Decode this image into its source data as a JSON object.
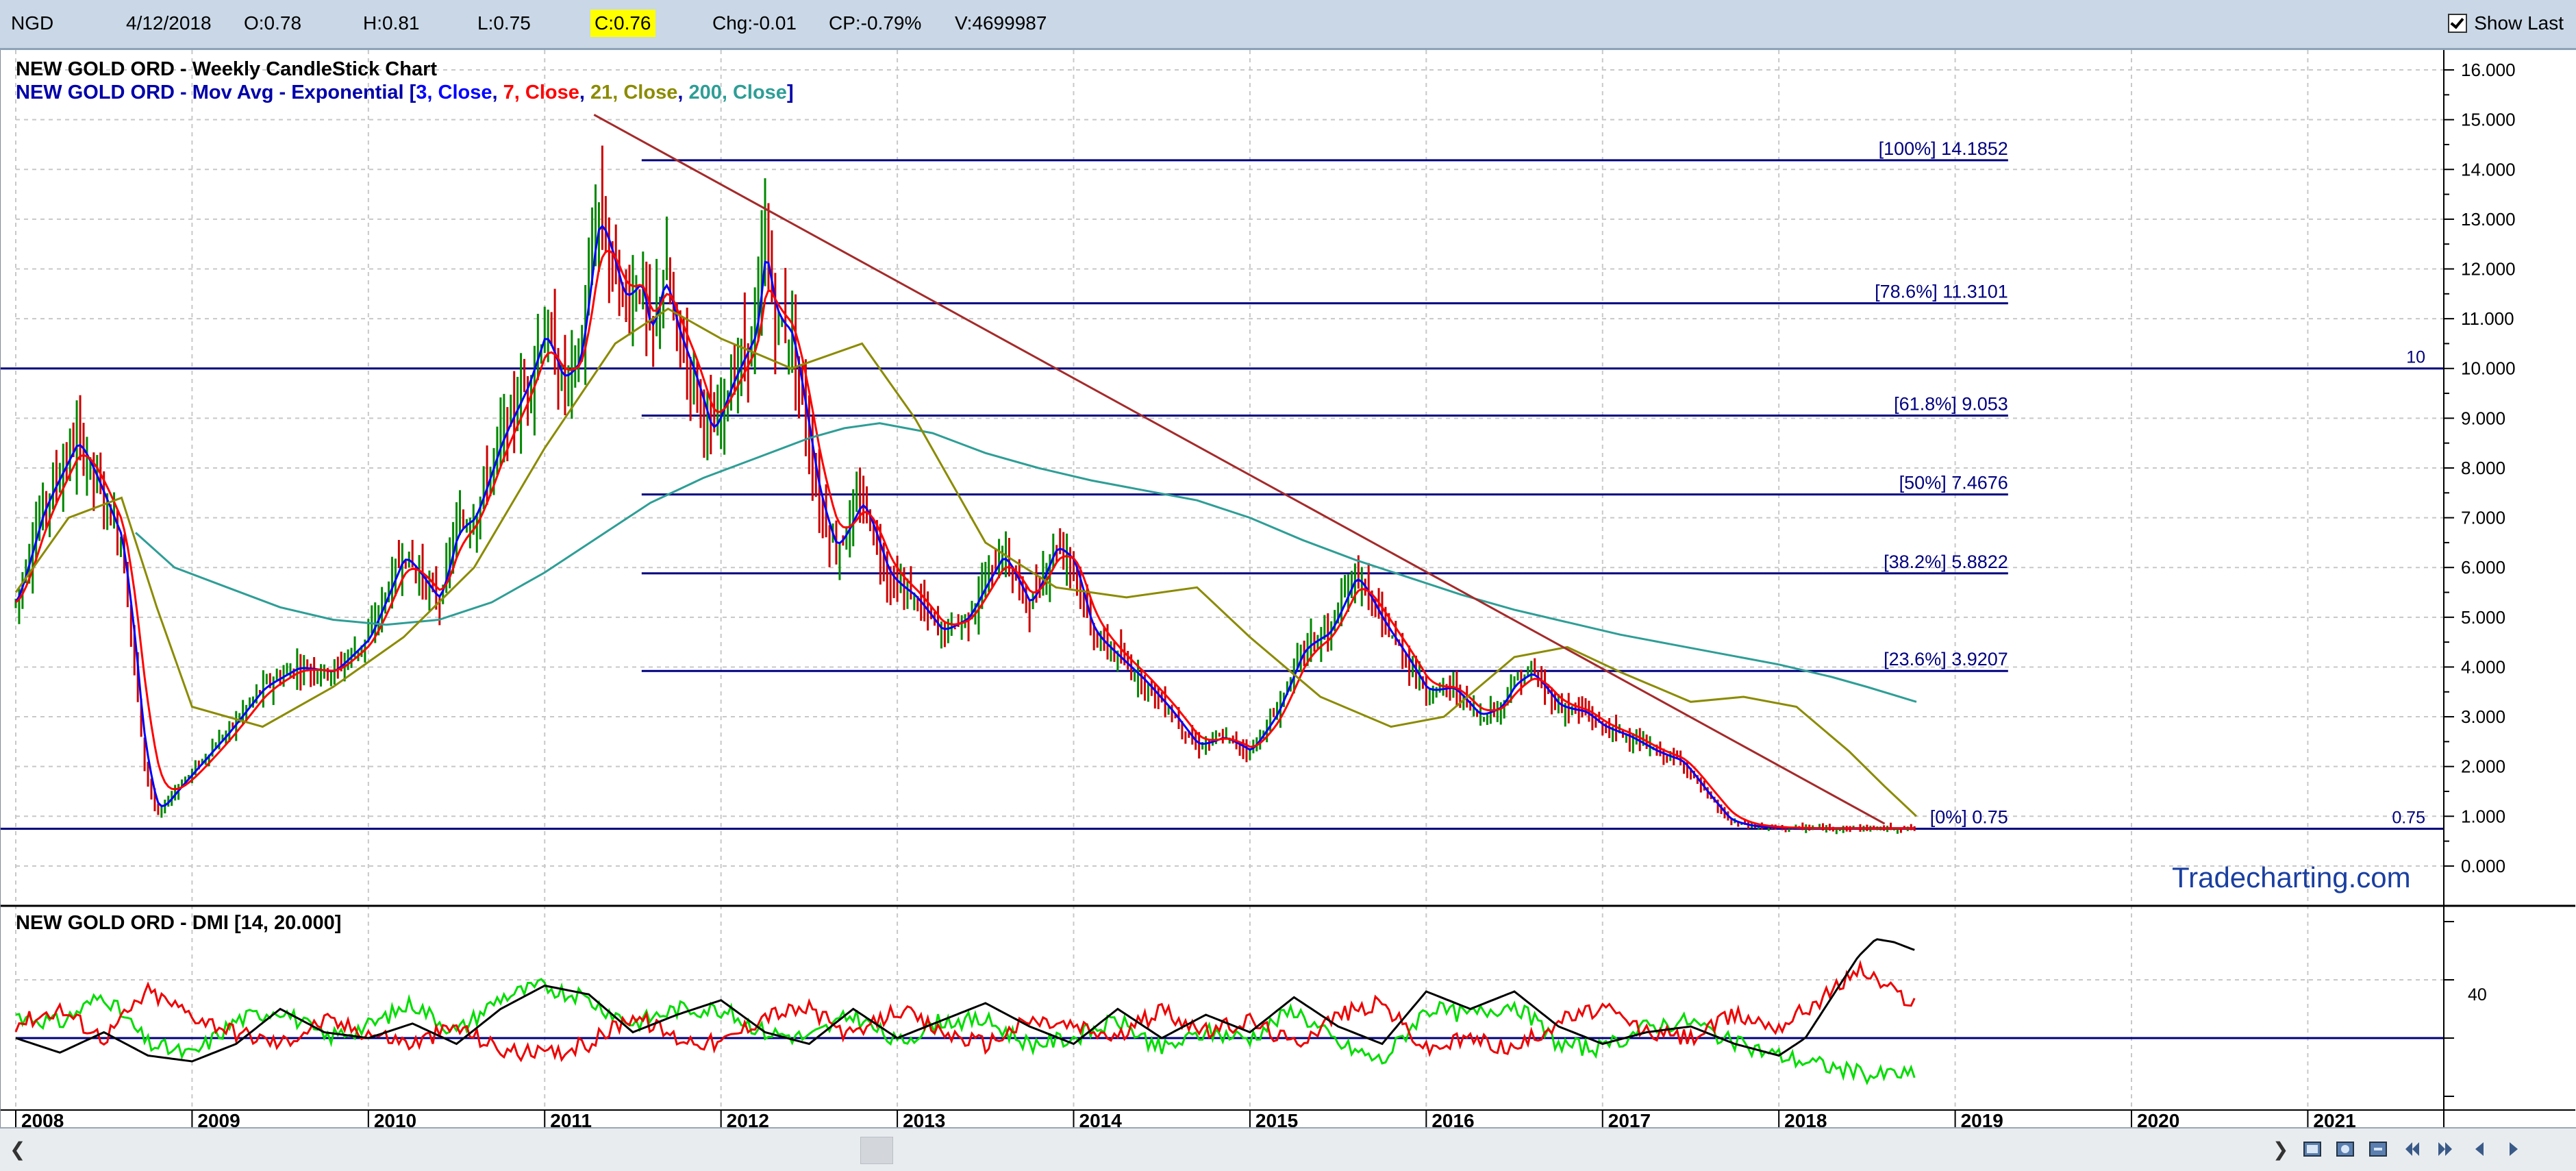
{
  "topbar": {
    "symbol": "NGD",
    "date": "4/12/2018",
    "open": "O:0.78",
    "high": "H:0.81",
    "low": "L:0.75",
    "close": "C:0.76",
    "change": "Chg:-0.01",
    "change_pct": "CP:-0.79%",
    "volume": "V:4699987",
    "show_last_label": "Show Last",
    "show_last_checked": true
  },
  "colors": {
    "title": "#000000",
    "legend_blue": "#0000aa",
    "ema3": "#0000ff",
    "ema7": "#ff0000",
    "ema21": "#8b8b00",
    "ema200": "#2e9e96",
    "trendline": "#a52a2a",
    "fib": "#00007f",
    "dmi_adx": "#000000",
    "dmi_plus": "#00dd00",
    "dmi_minus": "#ee0000",
    "watermark": "#1a3fa0"
  },
  "main_panel": {
    "title": "NEW GOLD ORD - Weekly CandleStick Chart",
    "legend_prefix": "NEW GOLD ORD - Mov Avg - Exponential [",
    "legend_items": [
      {
        "text": "3, Close",
        "color_key": "ema3"
      },
      {
        "text": "7, Close",
        "color_key": "ema7"
      },
      {
        "text": "21, Close",
        "color_key": "ema21"
      },
      {
        "text": "200, Close",
        "color_key": "ema200"
      }
    ],
    "legend_sep": ", ",
    "legend_suffix": "]",
    "watermark": "Tradecharting.com",
    "line_10_label": "10",
    "line_075_label": "0.75"
  },
  "dmi_panel": {
    "title": "NEW GOLD ORD - DMI [14, 20.000]",
    "level_label": "40",
    "ylim": [
      0,
      60
    ],
    "level_40": 40,
    "threshold": 20
  },
  "x_axis": {
    "labels": [
      "2008",
      "2009",
      "2010",
      "2011",
      "2012",
      "2013",
      "2014",
      "2015",
      "2016",
      "2017",
      "2018",
      "2019",
      "2020",
      "2021"
    ]
  },
  "chart_data": {
    "type": "line",
    "title": "NEW GOLD ORD - Weekly CandleStick Chart",
    "xlim": [
      2008.0,
      2021.55
    ],
    "ylim": [
      -0.8,
      16.4
    ],
    "y_ticks": [
      "0.000",
      "1.000",
      "2.000",
      "3.000",
      "4.000",
      "5.000",
      "6.000",
      "7.000",
      "8.000",
      "9.000",
      "10.000",
      "11.000",
      "12.000",
      "13.000",
      "14.000",
      "15.000",
      "16.000"
    ],
    "price_series": {
      "name": "NEW GOLD ORD",
      "x": [
        2008.0,
        2008.15,
        2008.35,
        2008.45,
        2008.6,
        2008.68,
        2008.72,
        2008.8,
        2008.9,
        2009.0,
        2009.2,
        2009.4,
        2009.6,
        2009.8,
        2010.0,
        2010.2,
        2010.4,
        2010.5,
        2010.6,
        2010.75,
        2010.9,
        2011.0,
        2011.1,
        2011.2,
        2011.3,
        2011.45,
        2011.55,
        2011.6,
        2011.68,
        2011.75,
        2011.85,
        2011.95,
        2012.05,
        2012.2,
        2012.25,
        2012.3,
        2012.4,
        2012.55,
        2012.65,
        2012.8,
        2012.95,
        2013.1,
        2013.25,
        2013.4,
        2013.5,
        2013.6,
        2013.75,
        2013.9,
        2014.0,
        2014.1,
        2014.25,
        2014.4,
        2014.55,
        2014.7,
        2014.85,
        2015.0,
        2015.15,
        2015.3,
        2015.45,
        2015.6,
        2015.75,
        2015.9,
        2016.0,
        2016.15,
        2016.3,
        2016.42,
        2016.5,
        2016.6,
        2016.75,
        2016.9,
        2017.0,
        2017.15,
        2017.3,
        2017.45,
        2017.6,
        2017.72,
        2017.85,
        2018.0,
        2018.15,
        2018.3,
        2018.45,
        2018.55,
        2018.65,
        2018.78
      ],
      "close": [
        5.3,
        7.2,
        8.6,
        7.8,
        6.5,
        3.9,
        2.2,
        1.0,
        1.5,
        1.9,
        2.7,
        3.6,
        4.0,
        3.9,
        4.6,
        6.3,
        5.3,
        6.8,
        7.0,
        8.6,
        9.7,
        10.8,
        9.7,
        10.2,
        13.3,
        11.3,
        11.8,
        10.5,
        12.0,
        10.7,
        9.8,
        8.6,
        9.7,
        10.8,
        12.8,
        11.0,
        10.7,
        7.4,
        6.3,
        7.4,
        5.8,
        5.4,
        4.7,
        5.0,
        5.7,
        6.3,
        5.2,
        6.5,
        6.1,
        4.7,
        4.2,
        3.7,
        3.1,
        2.4,
        2.6,
        2.3,
        3.1,
        4.4,
        4.7,
        5.9,
        4.9,
        4.1,
        3.5,
        3.6,
        3.0,
        3.2,
        3.7,
        3.9,
        3.2,
        3.1,
        2.8,
        2.6,
        2.3,
        2.1,
        1.4,
        0.9,
        0.8,
        0.77,
        0.76,
        0.76,
        0.76,
        0.76,
        0.76,
        0.76
      ]
    },
    "series": [
      {
        "name": "200, Close",
        "x": [
          2008.68,
          2008.9,
          2009.2,
          2009.5,
          2009.8,
          2010.1,
          2010.4,
          2010.7,
          2011.0,
          2011.3,
          2011.6,
          2011.9,
          2012.2,
          2012.5,
          2012.7,
          2012.9,
          2013.2,
          2013.5,
          2013.8,
          2014.1,
          2014.4,
          2014.7,
          2015.0,
          2015.3,
          2015.6,
          2015.9,
          2016.2,
          2016.5,
          2016.8,
          2017.1,
          2017.4,
          2017.7,
          2018.0,
          2018.3,
          2018.5,
          2018.78
        ],
        "values": [
          6.7,
          6.0,
          5.6,
          5.2,
          4.95,
          4.85,
          4.95,
          5.3,
          5.9,
          6.6,
          7.3,
          7.8,
          8.2,
          8.6,
          8.8,
          8.9,
          8.7,
          8.3,
          8.0,
          7.75,
          7.55,
          7.35,
          7.0,
          6.55,
          6.15,
          5.8,
          5.45,
          5.15,
          4.9,
          4.65,
          4.45,
          4.25,
          4.05,
          3.8,
          3.6,
          3.3
        ]
      },
      {
        "name": "21, Close",
        "x": [
          2008.0,
          2008.3,
          2008.6,
          2008.8,
          2009.0,
          2009.4,
          2009.8,
          2010.2,
          2010.6,
          2011.0,
          2011.4,
          2011.7,
          2012.0,
          2012.4,
          2012.8,
          2013.1,
          2013.5,
          2013.9,
          2014.3,
          2014.7,
          2015.0,
          2015.4,
          2015.8,
          2016.1,
          2016.5,
          2016.8,
          2017.1,
          2017.5,
          2017.8,
          2018.1,
          2018.4,
          2018.6,
          2018.78
        ],
        "values": [
          5.5,
          7.0,
          7.4,
          5.2,
          3.2,
          2.8,
          3.6,
          4.6,
          6.0,
          8.4,
          10.5,
          11.2,
          10.6,
          10.0,
          10.5,
          9.0,
          6.5,
          5.6,
          5.4,
          5.6,
          4.6,
          3.4,
          2.8,
          3.0,
          4.2,
          4.4,
          3.9,
          3.3,
          3.4,
          3.2,
          2.3,
          1.6,
          1.0
        ]
      },
      {
        "name": "Trendline",
        "x": [
          2011.28,
          2018.6
        ],
        "values": [
          15.1,
          0.85
        ]
      }
    ],
    "fib_levels": [
      {
        "label": "[100%] 14.1852",
        "value": 14.1852
      },
      {
        "label": "[78.6%] 11.3101",
        "value": 11.3101
      },
      {
        "label": "[61.8%] 9.053",
        "value": 9.053
      },
      {
        "label": "[50%] 7.4676",
        "value": 7.4676
      },
      {
        "label": "[38.2%] 5.8822",
        "value": 5.8822
      },
      {
        "label": "[23.6%] 3.9207",
        "value": 3.9207
      },
      {
        "label": "[0%] 0.75",
        "value": 0.75
      }
    ],
    "fib_x_range": [
      2011.55,
      2019.3
    ],
    "horizontal_lines": [
      10,
      0.75
    ],
    "dmi": {
      "x": [
        2008.0,
        2008.25,
        2008.5,
        2008.75,
        2009.0,
        2009.25,
        2009.5,
        2009.75,
        2010.0,
        2010.25,
        2010.5,
        2010.75,
        2011.0,
        2011.25,
        2011.5,
        2011.75,
        2012.0,
        2012.25,
        2012.5,
        2012.75,
        2013.0,
        2013.25,
        2013.5,
        2013.75,
        2014.0,
        2014.25,
        2014.5,
        2014.75,
        2015.0,
        2015.25,
        2015.5,
        2015.75,
        2016.0,
        2016.25,
        2016.5,
        2016.75,
        2017.0,
        2017.25,
        2017.5,
        2017.75,
        2018.0,
        2018.15,
        2018.3,
        2018.45,
        2018.55,
        2018.65,
        2018.78
      ],
      "adx": [
        20,
        15,
        22,
        14,
        12,
        18,
        30,
        22,
        20,
        25,
        18,
        30,
        38,
        35,
        22,
        28,
        33,
        22,
        18,
        30,
        20,
        26,
        32,
        24,
        18,
        30,
        20,
        28,
        22,
        34,
        24,
        18,
        36,
        30,
        36,
        24,
        18,
        22,
        24,
        18,
        14,
        20,
        34,
        48,
        54,
        53,
        50
      ],
      "plus_di": [
        28,
        25,
        35,
        18,
        14,
        26,
        30,
        20,
        24,
        32,
        22,
        34,
        38,
        33,
        25,
        30,
        30,
        22,
        20,
        28,
        18,
        26,
        26,
        18,
        20,
        26,
        16,
        22,
        20,
        30,
        18,
        12,
        30,
        28,
        32,
        18,
        16,
        24,
        26,
        18,
        14,
        12,
        10,
        8,
        7,
        8,
        7
      ],
      "minus_di": [
        25,
        30,
        20,
        36,
        28,
        22,
        18,
        26,
        22,
        18,
        24,
        16,
        14,
        18,
        28,
        20,
        18,
        28,
        30,
        20,
        30,
        22,
        18,
        26,
        24,
        20,
        30,
        22,
        26,
        18,
        28,
        32,
        16,
        20,
        16,
        26,
        30,
        22,
        20,
        28,
        24,
        30,
        36,
        44,
        40,
        36,
        32
      ]
    }
  }
}
